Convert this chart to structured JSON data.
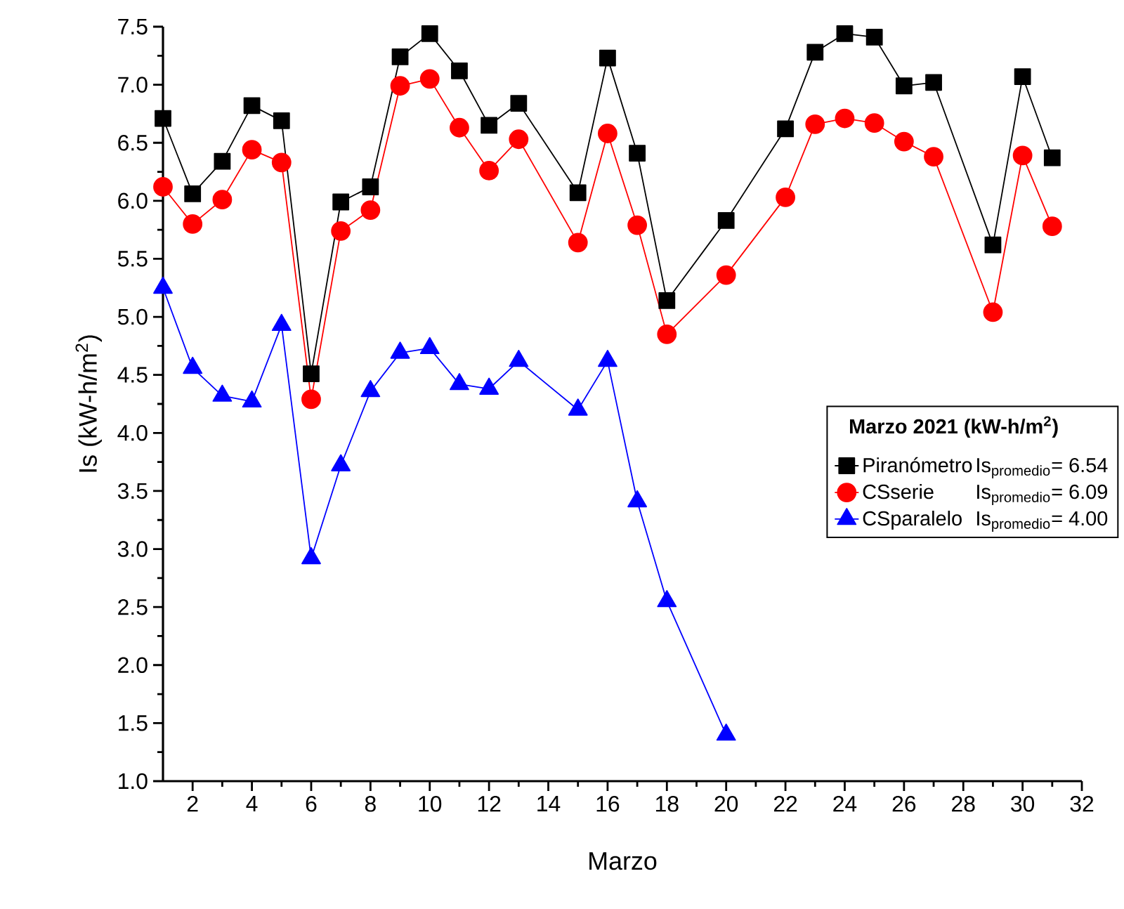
{
  "chart_data": {
    "type": "line",
    "xlabel": "Marzo",
    "ylabel": "Is (kW-h/m$^{2}$)",
    "legend_title": "Marzo 2021 (kW-h/m$^{2}$)",
    "legend": "right",
    "xlim": [
      1,
      32
    ],
    "xticks": [
      2,
      4,
      6,
      8,
      10,
      12,
      14,
      16,
      18,
      20,
      22,
      24,
      26,
      28,
      30,
      32
    ],
    "ylim": [
      1.0,
      7.5
    ],
    "yticks": [
      {
        "value": 1.0,
        "label": "1.0"
      },
      1.5,
      {
        "value": 2.0,
        "label": "2.0"
      },
      2.5,
      {
        "value": 3.0,
        "label": "3.0"
      },
      3.5,
      {
        "value": 4.0,
        "label": "4.0"
      },
      4.5,
      {
        "value": 5.0,
        "label": "5.0"
      },
      5.5,
      {
        "value": 6.0,
        "label": "6.0"
      },
      6.5,
      {
        "value": 7.0,
        "label": "7.0"
      },
      7.5
    ],
    "annotations": [
      "Is$_{promedio}$= 6.54",
      "Is$_{promedio}$= 6.09",
      "Is$_{promedio}$= 4.00"
    ],
    "series": [
      {
        "name": "Piranómetro",
        "color": "#000000",
        "marker": "square",
        "x": [
          1,
          2,
          3,
          4,
          5,
          6,
          7,
          8,
          9,
          10,
          11,
          12,
          13,
          15,
          16,
          17,
          18,
          20,
          22,
          23,
          24,
          25,
          26,
          27,
          29,
          30,
          31
        ],
        "values": [
          6.71,
          6.06,
          6.34,
          6.82,
          6.69,
          4.51,
          5.99,
          6.12,
          7.24,
          7.44,
          7.12,
          6.65,
          6.84,
          6.07,
          7.23,
          6.41,
          5.14,
          5.83,
          6.62,
          7.28,
          7.44,
          7.41,
          6.99,
          7.02,
          5.62,
          7.07,
          6.37
        ]
      },
      {
        "name": "CSserie",
        "color": "#ff0000",
        "marker": "circle",
        "x": [
          1,
          2,
          3,
          4,
          5,
          6,
          7,
          8,
          9,
          10,
          11,
          12,
          13,
          15,
          16,
          17,
          18,
          20,
          22,
          23,
          24,
          25,
          26,
          27,
          29,
          30,
          31
        ],
        "values": [
          6.12,
          5.8,
          6.01,
          6.44,
          6.33,
          4.29,
          5.74,
          5.92,
          6.99,
          7.05,
          6.63,
          6.26,
          6.53,
          5.64,
          6.58,
          5.79,
          4.85,
          5.36,
          6.03,
          6.66,
          6.71,
          6.67,
          6.51,
          6.38,
          5.04,
          6.39,
          5.78
        ]
      },
      {
        "name": "CSparalelo",
        "color": "#0000ff",
        "marker": "triangle",
        "x": [
          1,
          2,
          3,
          4,
          5,
          6,
          7,
          8,
          9,
          10,
          11,
          12,
          13,
          15,
          16,
          17,
          18,
          20
        ],
        "values": [
          5.25,
          4.56,
          4.32,
          4.27,
          4.93,
          2.92,
          3.72,
          4.36,
          4.69,
          4.73,
          4.42,
          4.38,
          4.62,
          4.2,
          4.62,
          3.41,
          2.55,
          1.4
        ]
      }
    ]
  }
}
